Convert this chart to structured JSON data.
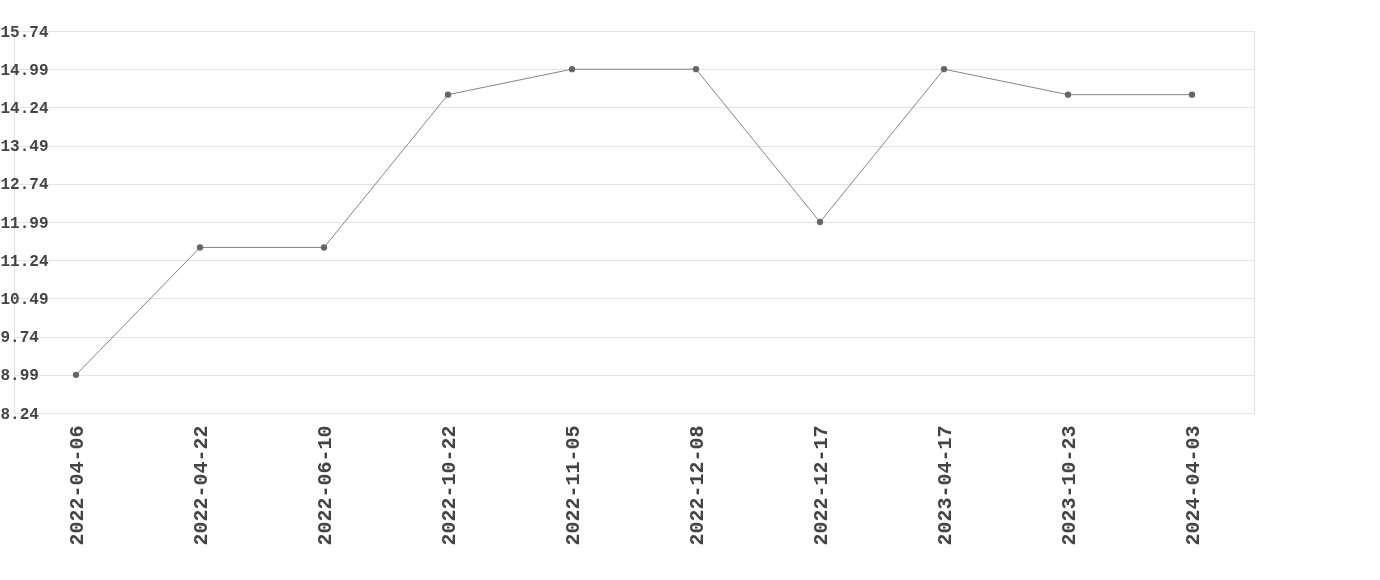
{
  "chart_data": {
    "type": "line",
    "categories": [
      "2022-04-06",
      "2022-04-22",
      "2022-06-10",
      "2022-10-22",
      "2022-11-05",
      "2022-12-08",
      "2022-12-17",
      "2023-04-17",
      "2023-10-23",
      "2024-04-03"
    ],
    "series": [
      {
        "color": "#666666",
        "values": [
          8.99,
          11.49,
          11.49,
          14.49,
          14.99,
          14.99,
          11.99,
          14.99,
          14.49,
          14.49
        ]
      }
    ],
    "ylim": [
      8.24,
      15.74
    ],
    "yticks": [
      8.24,
      8.99,
      9.74,
      10.49,
      11.24,
      11.99,
      12.74,
      13.49,
      14.24,
      14.99,
      15.74
    ],
    "grid": "y",
    "marker": "circle",
    "line_style": "solid"
  }
}
